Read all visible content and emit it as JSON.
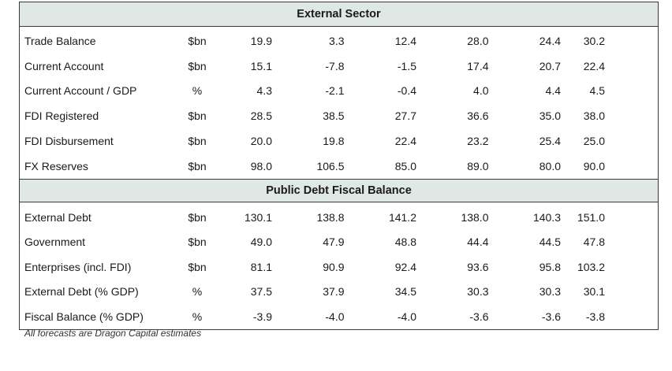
{
  "sections": [
    {
      "title": "External Sector",
      "rows": [
        {
          "label": "Trade Balance",
          "unit": "$bn",
          "values": [
            "19.9",
            "3.3",
            "12.4",
            "28.0",
            "24.4",
            "30.2"
          ]
        },
        {
          "label": "Current Account",
          "unit": "$bn",
          "values": [
            "15.1",
            "-7.8",
            "-1.5",
            "17.4",
            "20.7",
            "22.4"
          ]
        },
        {
          "label": "Current Account / GDP",
          "unit": "%",
          "values": [
            "4.3",
            "-2.1",
            "-0.4",
            "4.0",
            "4.4",
            "4.5"
          ]
        },
        {
          "label": "FDI Registered",
          "unit": "$bn",
          "values": [
            "28.5",
            "38.5",
            "27.7",
            "36.6",
            "35.0",
            "38.0"
          ]
        },
        {
          "label": "FDI Disbursement",
          "unit": "$bn",
          "values": [
            "20.0",
            "19.8",
            "22.4",
            "23.2",
            "25.4",
            "25.0"
          ]
        },
        {
          "label": "FX Reserves",
          "unit": "$bn",
          "values": [
            "98.0",
            "106.5",
            "85.0",
            "89.0",
            "80.0",
            "90.0"
          ]
        }
      ]
    },
    {
      "title": "Public Debt  Fiscal Balance",
      "rows": [
        {
          "label": "External Debt",
          "unit": "$bn",
          "values": [
            "130.1",
            "138.8",
            "141.2",
            "138.0",
            "140.3",
            "151.0"
          ]
        },
        {
          "label": "Government",
          "unit": "$bn",
          "values": [
            "49.0",
            "47.9",
            "48.8",
            "44.4",
            "44.5",
            "47.8"
          ]
        },
        {
          "label": "Enterprises (incl. FDI)",
          "unit": "$bn",
          "values": [
            "81.1",
            "90.9",
            "92.4",
            "93.6",
            "95.8",
            "103.2"
          ]
        },
        {
          "label": "External Debt (% GDP)",
          "unit": "%",
          "values": [
            "37.5",
            "37.9",
            "34.5",
            "30.3",
            "30.3",
            "30.1"
          ]
        },
        {
          "label": "Fiscal Balance (% GDP)",
          "unit": "%",
          "values": [
            "-3.9",
            "-4.0",
            "-4.0",
            "-3.6",
            "-3.6",
            "-3.8"
          ]
        }
      ]
    }
  ],
  "footnote": "All forecasts are Dragon Capital estimates"
}
